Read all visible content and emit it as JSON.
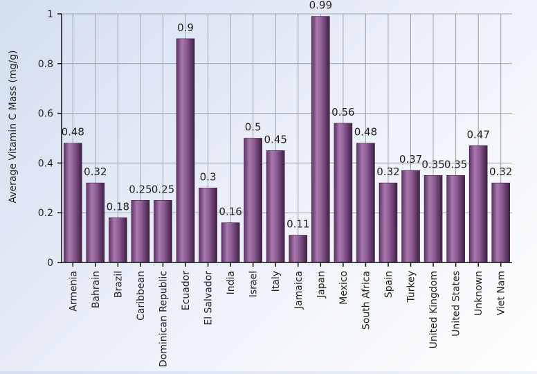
{
  "chart_data": {
    "type": "bar",
    "title": "",
    "xlabel": "",
    "ylabel": "Average Vitamin C Mass (mg/g)",
    "ylim": [
      0,
      1
    ],
    "yticks": [
      0,
      0.2,
      0.4,
      0.6,
      0.8,
      1
    ],
    "ytick_labels": [
      "0",
      "0.2",
      "0.4",
      "0.6",
      "0.8",
      "1"
    ],
    "grid": true,
    "legend": "none",
    "bar_color": "#8e5c94",
    "categories": [
      "Armenia",
      "Bahrain",
      "Brazil",
      "Caribbean",
      "Dominican Republic",
      "Ecuador",
      "El Salvador",
      "India",
      "Israel",
      "Italy",
      "Jamaica",
      "Japan",
      "Mexico",
      "South Africa",
      "Spain",
      "Turkey",
      "United Kingdom",
      "United States",
      "Unknown",
      "Viet Nam"
    ],
    "values": [
      0.48,
      0.32,
      0.18,
      0.25,
      0.25,
      0.9,
      0.3,
      0.16,
      0.5,
      0.45,
      0.11,
      0.99,
      0.56,
      0.48,
      0.32,
      0.37,
      0.35,
      0.35,
      0.47,
      0.32
    ],
    "data_labels": [
      "0.48",
      "0.32",
      "0.18",
      "0.25",
      "0.25",
      "0.9",
      "0.3",
      "0.16",
      "0.5",
      "0.45",
      "0.11",
      "0.99",
      "0.56",
      "0.48",
      "0.32",
      "0.37",
      "0.35",
      "0.35",
      "0.47",
      "0.32"
    ]
  }
}
